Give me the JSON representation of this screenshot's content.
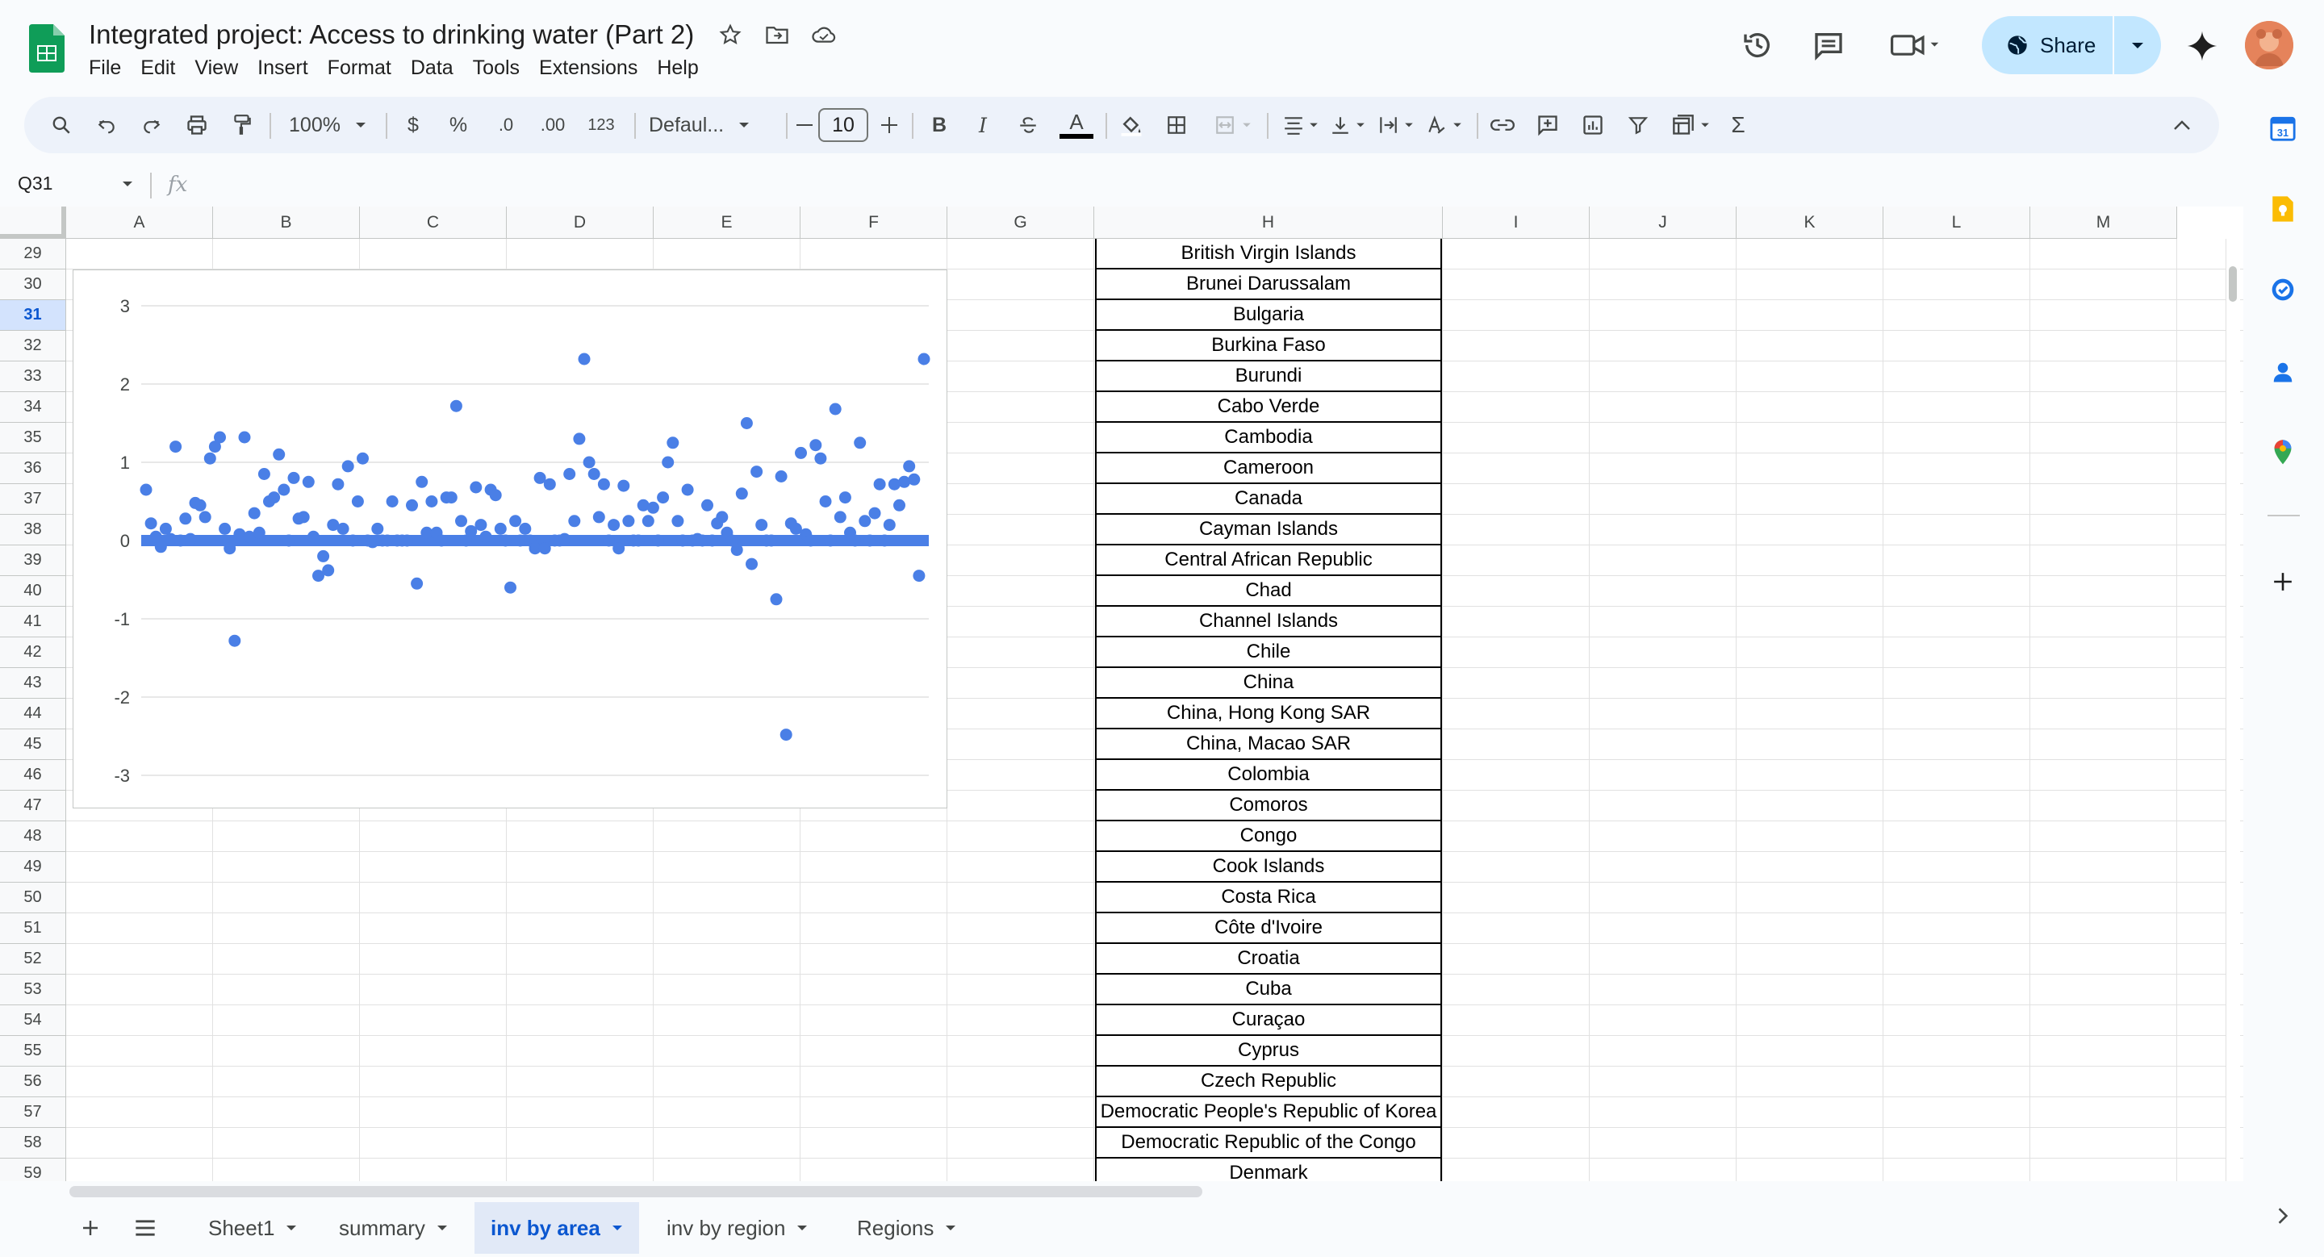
{
  "document": {
    "title": "Integrated project: Access to drinking water (Part 2)"
  },
  "menu": [
    "File",
    "Edit",
    "View",
    "Insert",
    "Format",
    "Data",
    "Tools",
    "Extensions",
    "Help"
  ],
  "header": {
    "share_label": "Share"
  },
  "toolbar": {
    "zoom": "100%",
    "currency": "$",
    "percent": "%",
    "dec_decrease": ".0",
    "dec_increase": ".00",
    "number_format": "123",
    "font": "Defaul...",
    "font_size": "10",
    "bold": "B",
    "italic": "I",
    "font_color_letter": "A",
    "sum": "Σ"
  },
  "formula_bar": {
    "cell_ref": "Q31",
    "fx": "fx"
  },
  "columns": [
    "A",
    "B",
    "C",
    "D",
    "E",
    "F",
    "G",
    "H",
    "I",
    "J",
    "K",
    "L",
    "M"
  ],
  "rows": [
    "29",
    "30",
    "31",
    "32",
    "33",
    "34",
    "35",
    "36",
    "37",
    "38",
    "39",
    "40",
    "41",
    "42",
    "43",
    "44",
    "45",
    "46",
    "47",
    "48",
    "49",
    "50",
    "51",
    "52",
    "53",
    "54",
    "55",
    "56",
    "57",
    "58",
    "59"
  ],
  "active_row": "31",
  "column_h_values": [
    "British Virgin Islands",
    "Brunei Darussalam",
    "Bulgaria",
    "Burkina Faso",
    "Burundi",
    "Cabo Verde",
    "Cambodia",
    "Cameroon",
    "Canada",
    "Cayman Islands",
    "Central African Republic",
    "Chad",
    "Channel Islands",
    "Chile",
    "China",
    "China, Hong Kong SAR",
    "China, Macao SAR",
    "Colombia",
    "Comoros",
    "Congo",
    "Cook Islands",
    "Costa Rica",
    "Côte d'Ivoire",
    "Croatia",
    "Cuba",
    "Curaçao",
    "Cyprus",
    "Czech Republic",
    "Democratic People's Republic of Korea",
    "Democratic Republic of the Congo",
    "Denmark"
  ],
  "sheets": [
    {
      "label": "Sheet1",
      "active": false
    },
    {
      "label": "summary",
      "active": false
    },
    {
      "label": "inv by area",
      "active": true
    },
    {
      "label": "inv by region",
      "active": false
    },
    {
      "label": "Regions",
      "active": false
    }
  ],
  "chart_data": {
    "type": "scatter",
    "title": "",
    "xlabel": "",
    "ylabel": "",
    "ylim": [
      -3,
      3
    ],
    "yticks": [
      "3",
      "2",
      "1",
      "0",
      "-1",
      "-2",
      "-3"
    ],
    "grid": true,
    "legend": "none",
    "color": "#4a7fe6",
    "series": [
      {
        "y": [
          0.65,
          0.22,
          0.05,
          -0.08,
          0.15,
          0.02,
          1.2,
          0.0,
          0.28,
          0.02,
          0.48,
          0.45,
          0.3,
          1.05,
          1.2,
          1.32,
          0.15,
          -0.1,
          -1.28,
          0.08,
          1.32,
          0.05,
          0.35,
          0.1,
          0.85,
          0.5,
          0.55,
          1.1,
          0.65,
          0.0,
          0.8,
          0.28,
          0.3,
          0.75,
          0.05,
          -0.45,
          -0.2,
          -0.38,
          0.2,
          0.72,
          0.15,
          0.95,
          0.0,
          0.5,
          1.05,
          0.0,
          -0.02,
          0.15,
          0.0,
          0.0,
          0.5,
          0.0,
          0.0,
          0.0,
          0.45,
          -0.55,
          0.75,
          0.1,
          0.5,
          0.1,
          0.0,
          0.55,
          0.55,
          1.72,
          0.25,
          0.0,
          0.12,
          0.68,
          0.2,
          0.05,
          0.65,
          0.58,
          0.15,
          0.0,
          -0.6,
          0.25,
          0.0,
          0.15,
          0.0,
          -0.1,
          0.8,
          -0.1,
          0.72,
          0.0,
          0.0,
          0.02,
          0.85,
          0.25,
          1.3,
          2.32,
          1.0,
          0.85,
          0.3,
          0.72,
          0.0,
          0.2,
          -0.1,
          0.7,
          0.25,
          0.0,
          0.0,
          0.45,
          0.25,
          0.42,
          0.0,
          0.55,
          1.0,
          1.25,
          0.25,
          0.0,
          0.65,
          0.0,
          0.02,
          0.0,
          0.45,
          0.0,
          0.22,
          0.3,
          0.1,
          0.0,
          -0.12,
          0.6,
          1.5,
          -0.3,
          0.88,
          0.2,
          0.0,
          0.0,
          -0.75,
          0.82,
          -2.48,
          0.22,
          0.15,
          1.12,
          0.08,
          0.0,
          1.22,
          1.05,
          0.5,
          0.0,
          1.68,
          0.3,
          0.55,
          0.1,
          0.0,
          1.25,
          0.25,
          0.0,
          0.35,
          0.72,
          0.0,
          0.2,
          0.72,
          0.45,
          0.75,
          0.95,
          0.78,
          -0.45,
          2.32
        ]
      }
    ]
  }
}
